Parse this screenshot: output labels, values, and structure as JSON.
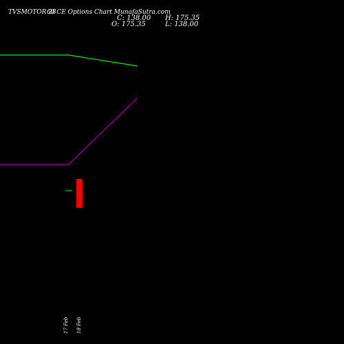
{
  "header": {
    "symbol_left": "TVSMOTOR 28",
    "symbol_right": "60  CE Options  Chart MunafaSutra.com"
  },
  "stats": {
    "c": "C: 138.00",
    "h": "H: 175.35",
    "o": "O: 175.35",
    "l": "L: 138.00"
  },
  "chart_data": {
    "type": "line",
    "x": [
      "",
      "",
      "",
      "",
      "",
      "",
      "17 Feb",
      "18 Feb"
    ],
    "series": [
      {
        "color": "#00ff00",
        "values": [
          175.35,
          175.35,
          175.35,
          175.35,
          175.35,
          175.35,
          175.35,
          138.0
        ]
      },
      {
        "color": "#a000a0",
        "values": [
          null,
          null,
          null,
          null,
          null,
          null,
          null,
          null
        ]
      }
    ],
    "candles": [
      {
        "date": "17 Feb",
        "open": 175.35,
        "high": 175.35,
        "low": 175.35,
        "close": 175.35,
        "color": "#00aa00"
      },
      {
        "date": "18 Feb",
        "open": 175.35,
        "high": 175.35,
        "low": 138.0,
        "close": 138.0,
        "color": "#ff0000"
      }
    ],
    "x_labels": [
      "17 Feb",
      "18 Feb"
    ]
  }
}
